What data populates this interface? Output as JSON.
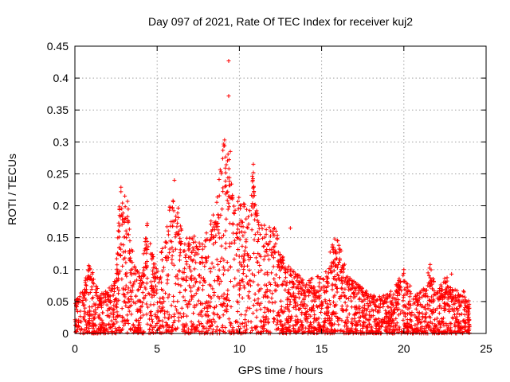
{
  "chart_data": {
    "type": "scatter",
    "title": "Day 097 of 2021, Rate Of TEC Index for receiver kuj2",
    "xlabel": "GPS time / hours",
    "ylabel": "ROTI / TECUs",
    "xlim": [
      0,
      25
    ],
    "ylim": [
      0,
      0.45
    ],
    "xticks": [
      "0",
      "5",
      "10",
      "15",
      "20",
      "25"
    ],
    "yticks": [
      "0",
      "0.05",
      "0.1",
      "0.15",
      "0.2",
      "0.25",
      "0.3",
      "0.35",
      "0.4",
      "0.45"
    ],
    "grid": true,
    "marker": "+",
    "series_color": "#ff0000",
    "envelope_note": "approximate upper envelope of the dense point cloud (hours, ROTI)",
    "envelope": [
      [
        0.0,
        0.05
      ],
      [
        0.5,
        0.07
      ],
      [
        0.9,
        0.115
      ],
      [
        1.5,
        0.06
      ],
      [
        2.0,
        0.07
      ],
      [
        2.4,
        0.085
      ],
      [
        2.8,
        0.23
      ],
      [
        3.2,
        0.205
      ],
      [
        3.6,
        0.11
      ],
      [
        4.0,
        0.09
      ],
      [
        4.4,
        0.175
      ],
      [
        5.0,
        0.1
      ],
      [
        5.6,
        0.17
      ],
      [
        6.0,
        0.24
      ],
      [
        6.6,
        0.15
      ],
      [
        7.2,
        0.16
      ],
      [
        7.8,
        0.14
      ],
      [
        8.2,
        0.18
      ],
      [
        8.6,
        0.2
      ],
      [
        9.0,
        0.3
      ],
      [
        9.3,
        0.29
      ],
      [
        9.6,
        0.22
      ],
      [
        10.0,
        0.215
      ],
      [
        10.4,
        0.2
      ],
      [
        10.8,
        0.265
      ],
      [
        11.2,
        0.17
      ],
      [
        11.8,
        0.17
      ],
      [
        12.2,
        0.165
      ],
      [
        12.8,
        0.11
      ],
      [
        13.4,
        0.1
      ],
      [
        14.0,
        0.08
      ],
      [
        14.6,
        0.09
      ],
      [
        15.2,
        0.09
      ],
      [
        15.6,
        0.14
      ],
      [
        16.0,
        0.15
      ],
      [
        16.6,
        0.09
      ],
      [
        17.2,
        0.08
      ],
      [
        18.0,
        0.06
      ],
      [
        18.8,
        0.06
      ],
      [
        19.4,
        0.07
      ],
      [
        20.0,
        0.1
      ],
      [
        20.6,
        0.06
      ],
      [
        21.2,
        0.07
      ],
      [
        21.6,
        0.11
      ],
      [
        22.0,
        0.07
      ],
      [
        22.6,
        0.09
      ],
      [
        23.0,
        0.07
      ],
      [
        23.6,
        0.07
      ],
      [
        24.0,
        0.05
      ]
    ],
    "outliers": [
      [
        9.35,
        0.427
      ],
      [
        9.35,
        0.372
      ],
      [
        9.1,
        0.303
      ],
      [
        9.45,
        0.285
      ],
      [
        10.85,
        0.265
      ],
      [
        10.85,
        0.252
      ],
      [
        10.8,
        0.238
      ],
      [
        2.8,
        0.229
      ],
      [
        2.8,
        0.222
      ],
      [
        3.2,
        0.207
      ],
      [
        6.05,
        0.24
      ],
      [
        5.75,
        0.193
      ],
      [
        4.4,
        0.172
      ],
      [
        13.1,
        0.165
      ],
      [
        15.8,
        0.148
      ],
      [
        21.6,
        0.108
      ],
      [
        20.0,
        0.1
      ],
      [
        22.9,
        0.093
      ]
    ]
  }
}
